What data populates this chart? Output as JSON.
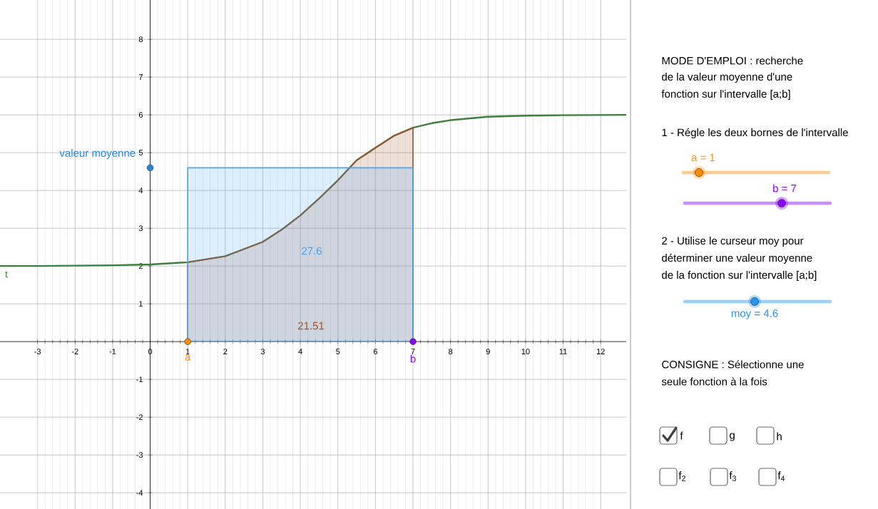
{
  "chart_data": {
    "type": "line",
    "xlim": [
      -4,
      12.68
    ],
    "ylim": [
      -4.43,
      9.04
    ],
    "xticks": [
      -3,
      -2,
      -1,
      0,
      1,
      2,
      3,
      4,
      5,
      6,
      7,
      8,
      9,
      10,
      11,
      12
    ],
    "yticks": [
      -4,
      -3,
      -2,
      -1,
      1,
      2,
      3,
      4,
      5,
      6,
      7,
      8
    ],
    "grid": true,
    "series": [
      {
        "name": "t",
        "color": "#3d7f3d",
        "x": [
          -4,
          -3,
          -2,
          -1,
          0,
          1,
          2,
          3,
          3.5,
          4,
          4.5,
          5,
          5.5,
          6,
          6.5,
          7,
          7.5,
          8,
          9,
          10,
          11,
          12.68
        ],
        "values": [
          2.0,
          2.0,
          2.01,
          2.02,
          2.04,
          2.1,
          2.26,
          2.64,
          2.96,
          3.34,
          3.79,
          4.27,
          4.8,
          5.13,
          5.45,
          5.66,
          5.78,
          5.86,
          5.95,
          5.98,
          5.99,
          6.0
        ]
      },
      {
        "type": "area",
        "color": "#a0522d",
        "x": [
          1,
          2,
          3,
          3.5,
          4,
          4.5,
          5,
          5.5,
          6,
          6.5,
          7
        ],
        "values": [
          2.1,
          2.26,
          2.64,
          2.96,
          3.34,
          3.79,
          4.27,
          4.8,
          5.13,
          5.45,
          5.66
        ]
      },
      {
        "type": "area",
        "color": "#42a5f5",
        "x": [
          1,
          7
        ],
        "values": [
          4.6,
          4.6
        ]
      },
      {
        "name": "valeur moyenne",
        "type": "scatter",
        "color": "#1e88e5",
        "x": [
          0
        ],
        "values": [
          4.6
        ]
      },
      {
        "name": "a",
        "type": "scatter",
        "color": "#ff8c00",
        "x": [
          1
        ],
        "values": [
          0
        ]
      },
      {
        "name": "b",
        "type": "scatter",
        "color": "#8b00ff",
        "x": [
          7
        ],
        "values": [
          0
        ]
      }
    ],
    "annotations": [
      "27.6",
      "21.51",
      "MODE D'EMPLOI : recherche",
      "de la valeur moyenne d'une",
      "fonction sur l'intervalle [a;b]",
      "1 - Régle les deux bornes de l'intervalle",
      "a = 1",
      "b = 7",
      "2 - Utilise le curseur moy pour",
      "déterminer une valeur moyenne",
      "de la fonction sur l'intervalle [a;b]",
      "moy = 4.6",
      "CONSIGNE : Sélectionne une",
      "seule fonction à la fois",
      "f",
      "g",
      "h",
      "f$_{2}$",
      "f$_{3}$",
      "f$_{4}$"
    ]
  }
}
